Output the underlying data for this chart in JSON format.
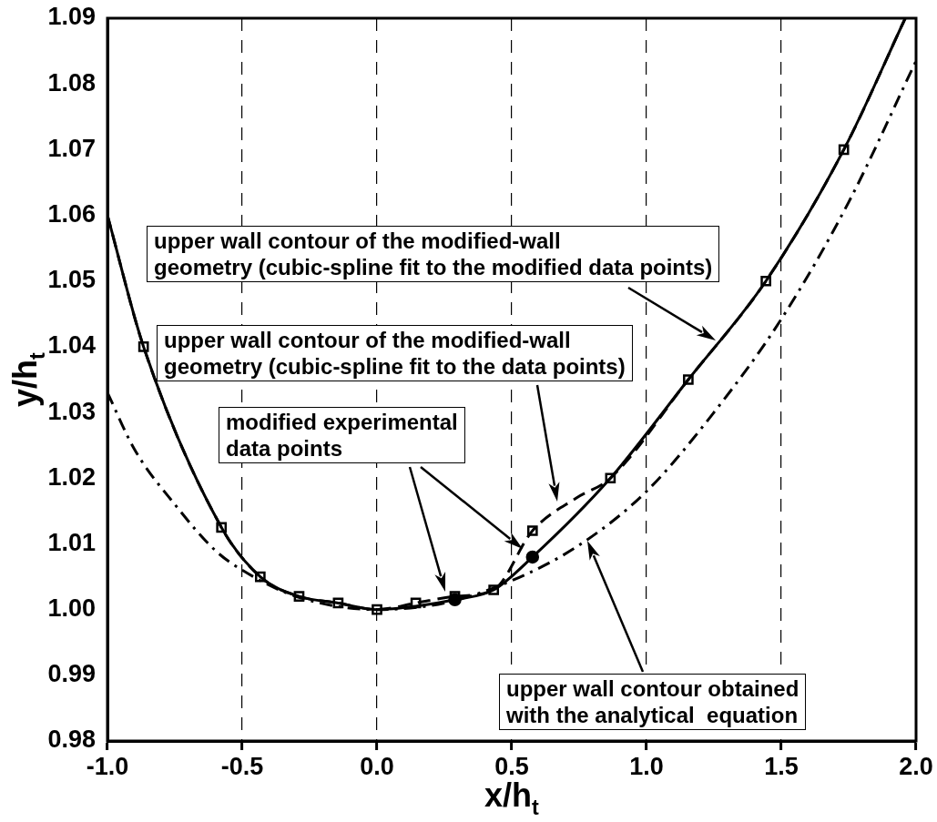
{
  "chart_data": {
    "type": "line",
    "xlabel": "x/h$_{t}$",
    "ylabel": "y/h$_{t}$",
    "xlim": [
      -1.0,
      2.0
    ],
    "ylim": [
      0.98,
      1.09
    ],
    "xticks": [
      {
        "value": -1,
        "label": "-1.0"
      },
      -0.5,
      {
        "value": 0,
        "label": "0.0"
      },
      0.5,
      {
        "value": 1,
        "label": "1.0"
      },
      1.5,
      {
        "value": 2,
        "label": "2.0"
      }
    ],
    "yticks": [
      0.98,
      0.99,
      {
        "value": 1,
        "label": "1.00"
      },
      1.01,
      1.02,
      1.03,
      1.04,
      1.05,
      1.06,
      1.07,
      1.08,
      1.09
    ],
    "grid": "x",
    "legend": false,
    "series": [
      {
        "color": "#000000",
        "line_style": "solid",
        "x": [
          -1.0,
          -0.866,
          -0.577,
          -0.433,
          -0.289,
          -0.144,
          0,
          0.144,
          0.289,
          0.433,
          0.577,
          0.866,
          1.155,
          1.443,
          1.732,
          1.96
        ],
        "values": [
          1.06,
          1.04,
          1.0125,
          1.005,
          1.002,
          1.001,
          1.0,
          1.0005,
          1.0015,
          1.003,
          1.008,
          1.02,
          1.035,
          1.05,
          1.07,
          1.09
        ]
      },
      {
        "color": "#000000",
        "line_style": "dashed",
        "x": [
          -1.0,
          -0.866,
          -0.577,
          -0.433,
          -0.289,
          -0.144,
          0,
          0.144,
          0.289,
          0.433,
          0.577,
          0.74,
          0.866,
          1.155,
          1.443,
          1.732,
          1.96
        ],
        "values": [
          1.06,
          1.04,
          1.0125,
          1.005,
          1.002,
          1.001,
          1.0,
          1.001,
          1.002,
          1.003,
          1.012,
          1.017,
          1.02,
          1.035,
          1.05,
          1.07,
          1.09
        ]
      },
      {
        "color": "#000000",
        "line_style": "dashdot",
        "x": [
          -1.0,
          -0.9,
          -0.75,
          -0.6,
          -0.5,
          -0.3,
          0,
          0.25,
          0.5,
          0.75,
          1.0,
          1.25,
          1.5,
          1.75,
          2.0
        ],
        "values": [
          1.033,
          1.0244,
          1.016,
          1.009,
          1.006,
          1.002,
          1.0,
          1.001,
          1.0044,
          1.0098,
          1.018,
          1.03,
          1.0442,
          1.062,
          1.0835
        ]
      },
      {
        "type": "scatter",
        "color": "#000000",
        "marker": "square",
        "x": [
          -0.866,
          -0.577,
          -0.433,
          -0.289,
          -0.144,
          0,
          0.144,
          0.289,
          0.433,
          0.577,
          0.866,
          1.155,
          1.443,
          1.732
        ],
        "values": [
          1.04,
          1.0125,
          1.005,
          1.002,
          1.001,
          1.0,
          1.001,
          1.002,
          1.003,
          1.012,
          1.02,
          1.035,
          1.05,
          1.07
        ]
      },
      {
        "type": "scatter",
        "color": "#000000",
        "marker": "circle",
        "x": [
          0.289,
          0.577
        ],
        "values": [
          1.0015,
          1.008
        ]
      }
    ],
    "annotations": [
      "upper wall contour of the modified-wall\ngeometry (cubic-spline fit to the modified data points)",
      "upper wall contour of the modified-wall\ngeometry (cubic-spline fit to the data points)",
      "modified experimental\ndata points",
      "upper wall contour obtained\nwith the analytical  equation"
    ]
  }
}
